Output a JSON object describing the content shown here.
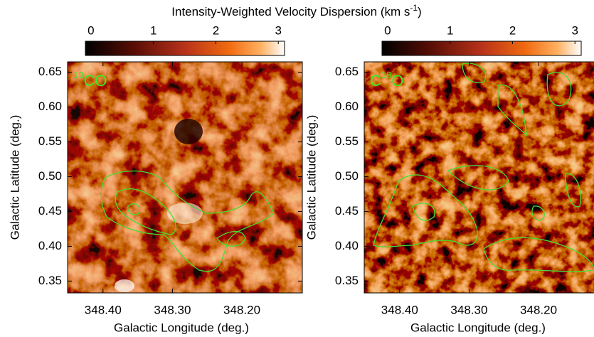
{
  "chart_data": [
    {
      "type": "heatmap",
      "colorbar_label": {
        "text": "Intensity-Weighted Velocity Dispersion (km s",
        "superscript": "-1",
        "suffix": ")"
      },
      "panel_label": {
        "superscript": "13",
        "text": "CO"
      },
      "xlabel": "Galactic Longitude (deg.)",
      "ylabel": "Galactic Latitude (deg.)",
      "xlim": [
        348.451,
        348.113
      ],
      "ylim": [
        0.333,
        0.665
      ],
      "xticks": [
        {
          "value": 348.4,
          "label": "348.40"
        },
        {
          "value": 348.3,
          "label": "348.30"
        },
        {
          "value": 348.2,
          "label": "348.20"
        }
      ],
      "yticks": [
        0.35,
        {
          "value": 0.4,
          "label": "0.40"
        },
        0.45,
        {
          "value": 0.5,
          "label": "0.50"
        },
        0.55,
        {
          "value": 0.6,
          "label": "0.60"
        },
        0.65
      ],
      "colorbar_lim": [
        -0.09,
        3.1
      ],
      "colorbar_ticks": [
        0,
        1,
        2,
        3
      ]
    },
    {
      "type": "heatmap",
      "panel_label": {
        "prefix": "C",
        "superscript": "18",
        "text": "O"
      },
      "xlabel": "Galactic Longitude (deg.)",
      "ylabel": "Galactic Latitude (deg.)",
      "xlim": [
        348.451,
        348.113
      ],
      "ylim": [
        0.333,
        0.665
      ],
      "xticks": [
        {
          "value": 348.4,
          "label": "348.40"
        },
        {
          "value": 348.3,
          "label": "348.30"
        },
        {
          "value": 348.2,
          "label": "348.20"
        }
      ],
      "yticks": [
        0.35,
        {
          "value": 0.4,
          "label": "0.40"
        },
        0.45,
        {
          "value": 0.5,
          "label": "0.50"
        },
        0.55,
        {
          "value": 0.6,
          "label": "0.60"
        },
        0.65
      ],
      "colorbar_lim": [
        -0.09,
        3.1
      ],
      "colorbar_ticks": [
        0,
        1,
        2,
        3
      ]
    }
  ]
}
